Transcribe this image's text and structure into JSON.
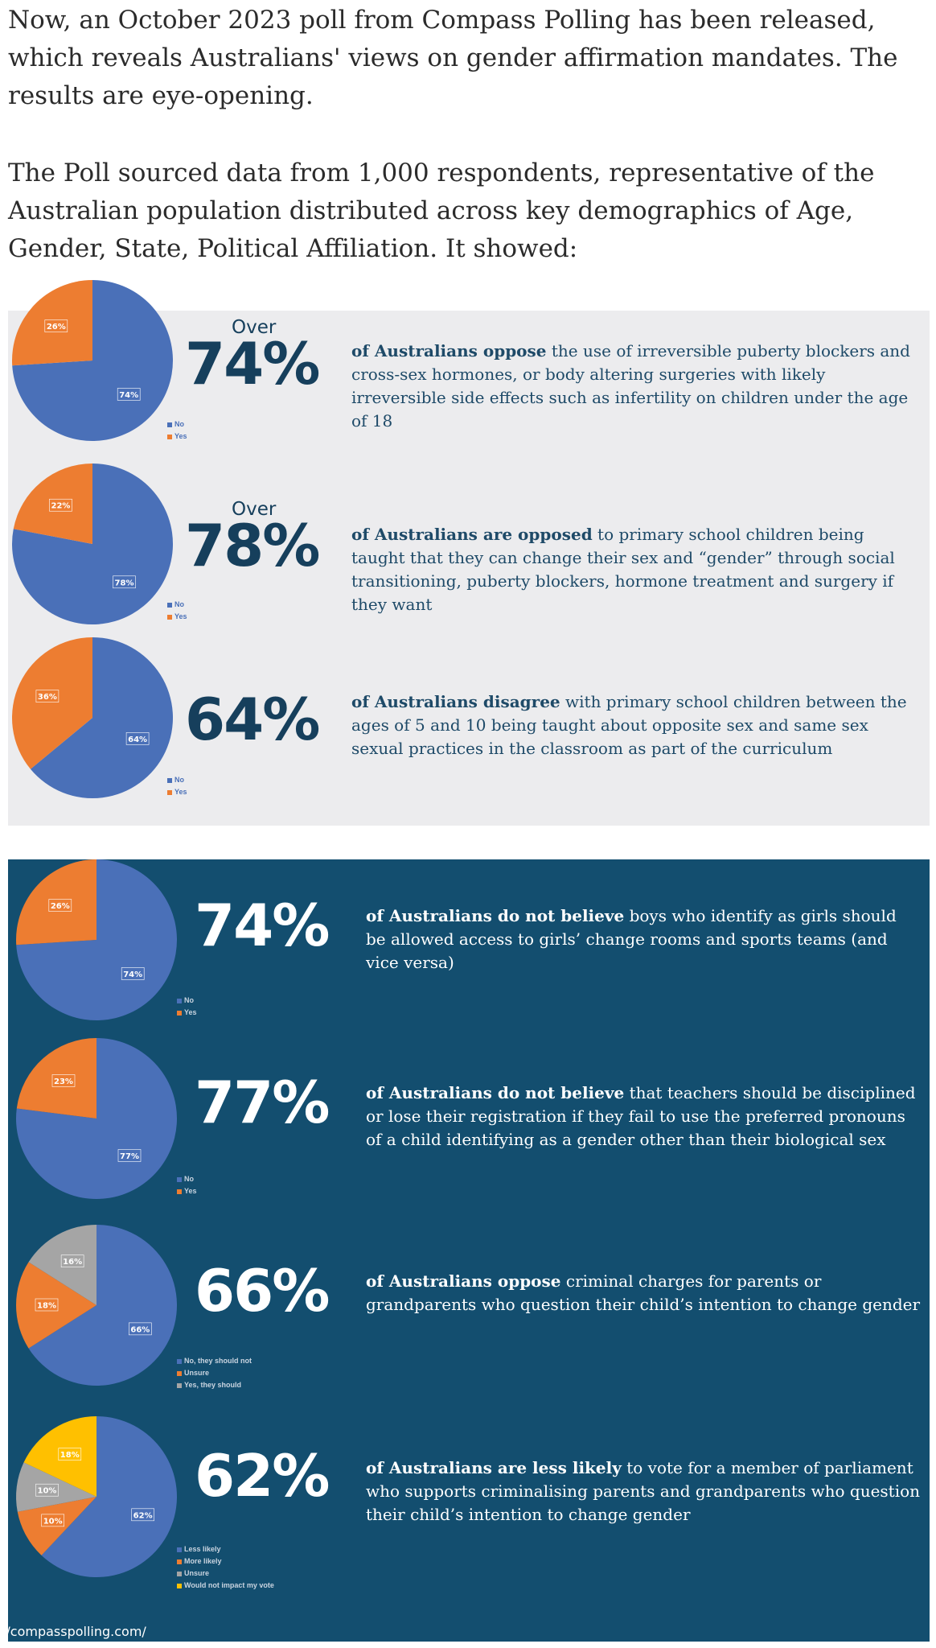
{
  "intro": {
    "p1": "Now, an October 2023 poll from Compass Polling has been released, which reveals Australians' views on gender affirmation mandates. The results are eye-opening.",
    "p2": "The Poll sourced data from 1,000 respondents, representative of the Australian population distributed across key demographics of Age, Gender, State, Political Affiliation. It showed:"
  },
  "colors": {
    "blue": "#4a70b8",
    "orange": "#ed7d31",
    "gray": "#a5a5a5",
    "yellow": "#ffc000",
    "light_panel": "#ececee",
    "dark_panel": "#134e6f",
    "heading_navy": "#163f5c"
  },
  "chart_data": [
    {
      "type": "pie",
      "prefix": "Over",
      "headline": "74%",
      "lead": "of Australians oppose",
      "text": " the use of irreversible puberty blockers and cross-sex hormones, or body altering surgeries with likely irreversible side effects such as infertility on children under the age of 18",
      "slices": [
        {
          "name": "No",
          "value": 74,
          "label": "74%",
          "color": "#4a70b8"
        },
        {
          "name": "Yes",
          "value": 26,
          "label": "26%",
          "color": "#ed7d31"
        }
      ]
    },
    {
      "type": "pie",
      "prefix": "Over",
      "headline": "78%",
      "lead": "of Australians are opposed",
      "text": " to primary school children being taught that they can change their sex and “gender” through social transitioning, puberty blockers, hormone treatment and surgery if they want",
      "slices": [
        {
          "name": "No",
          "value": 78,
          "label": "78%",
          "color": "#4a70b8"
        },
        {
          "name": "Yes",
          "value": 22,
          "label": "22%",
          "color": "#ed7d31"
        }
      ]
    },
    {
      "type": "pie",
      "prefix": "",
      "headline": "64%",
      "lead": "of Australians disagree",
      "text": " with primary school children between the ages of 5 and 10 being taught about opposite sex and same sex sexual practices in the classroom as part of the curriculum",
      "slices": [
        {
          "name": "No",
          "value": 64,
          "label": "64%",
          "color": "#4a70b8"
        },
        {
          "name": "Yes",
          "value": 36,
          "label": "36%",
          "color": "#ed7d31"
        }
      ]
    },
    {
      "type": "pie",
      "prefix": "",
      "headline": "74%",
      "lead": "of Australians do not believe",
      "text": " boys who identify as girls should be allowed access to girls’ change rooms and sports teams (and vice versa)",
      "slices": [
        {
          "name": "No",
          "value": 74,
          "label": "74%",
          "color": "#4a70b8"
        },
        {
          "name": "Yes",
          "value": 26,
          "label": "26%",
          "color": "#ed7d31"
        }
      ]
    },
    {
      "type": "pie",
      "prefix": "",
      "headline": "77%",
      "lead": "of Australians do not believe",
      "text": " that teachers should be disciplined or lose their registration if they fail to use the preferred pronouns of a child identifying as a gender other than their biological sex",
      "slices": [
        {
          "name": "No",
          "value": 77,
          "label": "77%",
          "color": "#4a70b8"
        },
        {
          "name": "Yes",
          "value": 23,
          "label": "23%",
          "color": "#ed7d31"
        }
      ]
    },
    {
      "type": "pie",
      "prefix": "",
      "headline": "66%",
      "lead": "of Australians oppose",
      "text": " criminal charges for parents or grandparents who question their child’s intention to change gender",
      "slices": [
        {
          "name": "No, they should not",
          "value": 66,
          "label": "66%",
          "color": "#4a70b8"
        },
        {
          "name": "Unsure",
          "value": 18,
          "label": "18%",
          "color": "#ed7d31"
        },
        {
          "name": "Yes, they should",
          "value": 16,
          "label": "16%",
          "color": "#a5a5a5"
        }
      ]
    },
    {
      "type": "pie",
      "prefix": "",
      "headline": "62%",
      "lead": "of Australians are less likely",
      "text": " to vote for a member of parliament who supports criminalising parents and grandparents who question their child’s intention to change gender",
      "slices": [
        {
          "name": "Less likely",
          "value": 62,
          "label": "62%",
          "color": "#4a70b8"
        },
        {
          "name": "More likely",
          "value": 10,
          "label": "10%",
          "color": "#ed7d31"
        },
        {
          "name": "Unsure",
          "value": 10,
          "label": "10%",
          "color": "#a5a5a5"
        },
        {
          "name": "Would not impact my vote",
          "value": 18,
          "label": "18%",
          "color": "#ffc000"
        }
      ]
    }
  ],
  "source": "//compasspolling.com/"
}
